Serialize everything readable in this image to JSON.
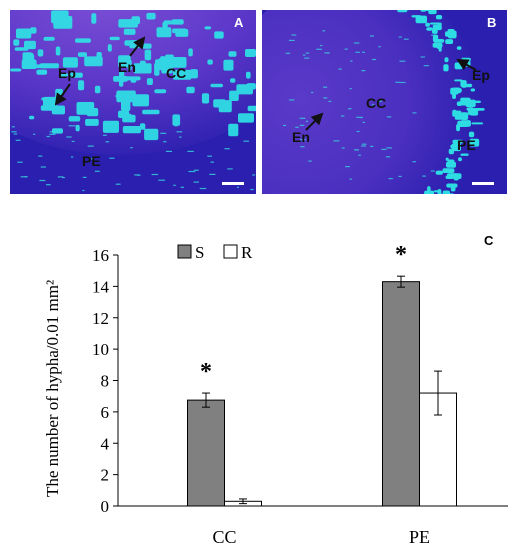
{
  "panels": [
    {
      "letter": "A",
      "labels": {
        "ep": "Ep",
        "en": "En",
        "cc": "CC",
        "pe": "PE"
      }
    },
    {
      "letter": "B",
      "labels": {
        "ep": "Ep",
        "en": "En",
        "cc": "CC",
        "pe": "PE"
      }
    }
  ],
  "colors": {
    "fluor_bg": "#2b1fb8",
    "fluor_cyan": "#2ee6e6",
    "fluor_purple": "#7a4fd8",
    "bar_s": "#808080",
    "bar_r": "#ffffff"
  },
  "chart_data": {
    "type": "bar",
    "panel_letter": "C",
    "categories": [
      "CC",
      "PE"
    ],
    "series": [
      {
        "name": "S",
        "values": [
          6.75,
          14.3
        ],
        "errors": [
          0.45,
          0.35
        ],
        "significance": [
          "*",
          "*"
        ]
      },
      {
        "name": "R",
        "values": [
          0.3,
          7.2
        ],
        "errors": [
          0.15,
          1.4
        ]
      }
    ],
    "ylabel": "The number of hypha/0.01 mm²",
    "xlabel": "",
    "ylim": [
      0,
      16
    ],
    "yticks": [
      0,
      2,
      4,
      6,
      8,
      10,
      12,
      14,
      16
    ],
    "grid": false,
    "legend": "top-left"
  }
}
